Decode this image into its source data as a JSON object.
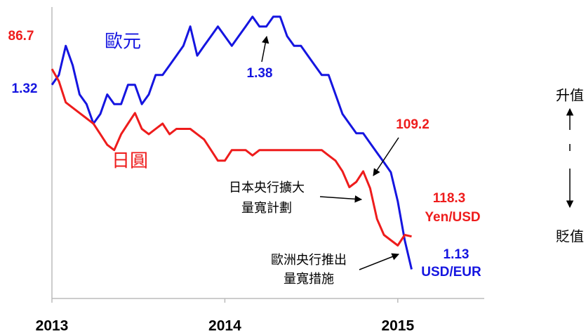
{
  "chart_data": {
    "type": "line",
    "x": [
      2013.0,
      2013.04,
      2013.08,
      2013.12,
      2013.16,
      2013.2,
      2013.24,
      2013.28,
      2013.32,
      2013.36,
      2013.4,
      2013.44,
      2013.48,
      2013.52,
      2013.56,
      2013.6,
      2013.64,
      2013.68,
      2013.72,
      2013.76,
      2013.8,
      2013.84,
      2013.88,
      2013.92,
      2013.96,
      2014.0,
      2014.04,
      2014.08,
      2014.12,
      2014.16,
      2014.2,
      2014.24,
      2014.28,
      2014.32,
      2014.36,
      2014.4,
      2014.44,
      2014.48,
      2014.52,
      2014.56,
      2014.6,
      2014.64,
      2014.68,
      2014.72,
      2014.76,
      2014.8,
      2014.84,
      2014.88,
      2014.92,
      2014.96,
      2015.0,
      2015.04,
      2015.08
    ],
    "xlim": [
      2013,
      2015.5
    ],
    "xticks": [
      2013,
      2014,
      2015
    ],
    "ylim": [
      1.1,
      1.4
    ],
    "y2lim": [
      130,
      75
    ],
    "series": [
      {
        "name": "歐元",
        "color": "#1515e0",
        "values": [
          1.32,
          1.33,
          1.36,
          1.34,
          1.31,
          1.3,
          1.28,
          1.29,
          1.31,
          1.3,
          1.3,
          1.32,
          1.32,
          1.3,
          1.31,
          1.33,
          1.33,
          1.34,
          1.35,
          1.36,
          1.38,
          1.35,
          1.36,
          1.37,
          1.38,
          1.37,
          1.36,
          1.37,
          1.38,
          1.39,
          1.38,
          1.38,
          1.39,
          1.39,
          1.37,
          1.36,
          1.36,
          1.35,
          1.34,
          1.33,
          1.33,
          1.31,
          1.29,
          1.28,
          1.27,
          1.27,
          1.26,
          1.25,
          1.24,
          1.23,
          1.2,
          1.16,
          1.13
        ]
      },
      {
        "name": "日圓",
        "color": "#ee1c1c",
        "axis": "y2",
        "values": [
          86.7,
          89,
          93,
          94,
          95,
          96,
          97,
          99,
          101,
          102,
          99,
          97,
          95,
          98,
          99,
          98,
          97,
          99,
          98,
          98,
          98,
          99,
          100,
          102,
          104,
          104,
          102,
          102,
          102,
          103,
          102,
          102,
          102,
          102,
          102,
          102,
          102,
          102,
          102,
          102,
          103,
          104,
          106,
          109,
          108,
          106,
          109.2,
          115,
          118,
          119,
          120,
          118,
          118.3
        ]
      }
    ],
    "annotations": {
      "boj": [
        "日本央行擴大",
        "量寬計劃"
      ],
      "ecb": [
        "歐洲央行推出",
        "量寬措施"
      ],
      "yen_unit": "Yen/USD",
      "eur_unit": "USD/EUR",
      "up": "升值",
      "down": "貶值"
    }
  }
}
